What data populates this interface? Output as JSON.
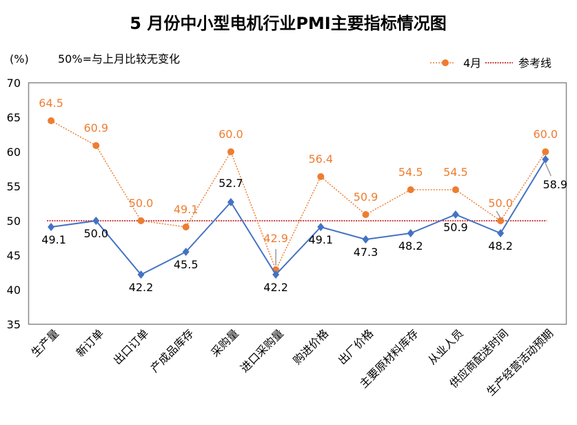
{
  "chart_data": {
    "type": "line",
    "title": "5 月份中小型电机行业PMI主要指标情况图",
    "ylabel": "(%)",
    "note": "50%=与上月比较无变化",
    "ylim": [
      35,
      70
    ],
    "yticks": [
      35,
      40,
      45,
      50,
      55,
      60,
      65,
      70
    ],
    "grid": false,
    "legend_position": "top-right",
    "categories": [
      "生产量",
      "新订单",
      "出口订单",
      "产成品库存",
      "采购量",
      "进口采购量",
      "购进价格",
      "出厂价格",
      "主要原材料库存",
      "从业人员",
      "供应商配送时间",
      "生产经营活动预期"
    ],
    "series": [
      {
        "values": [
          49.1,
          50.0,
          42.2,
          45.5,
          52.7,
          42.2,
          49.1,
          47.3,
          48.2,
          50.9,
          48.2,
          58.9
        ],
        "color": "#4472C4",
        "marker": "diamond",
        "style": "solid"
      },
      {
        "name": "4月",
        "values": [
          64.5,
          60.9,
          50.0,
          49.1,
          60.0,
          42.9,
          56.4,
          50.9,
          54.5,
          54.5,
          50.0,
          60.0
        ],
        "color": "#ED7D31",
        "marker": "circle",
        "style": "dotted"
      }
    ],
    "reference_line": {
      "name": "参考线",
      "value": 50,
      "color": "#C00000"
    }
  }
}
